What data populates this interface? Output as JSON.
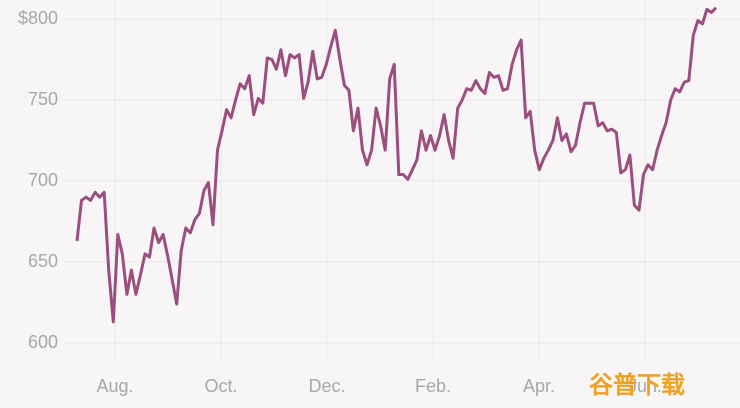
{
  "chart_data": {
    "type": "line",
    "series": [
      {
        "color": "#9b4f7e",
        "values": [
          663,
          688,
          690,
          688,
          693,
          690,
          693,
          645,
          613,
          667,
          655,
          630,
          645,
          630,
          642,
          655,
          653,
          671,
          662,
          667,
          654,
          639,
          624,
          657,
          671,
          668,
          676,
          680,
          694,
          699,
          673,
          719,
          731,
          744,
          739,
          750,
          760,
          757,
          765,
          741,
          751,
          748,
          776,
          775,
          769,
          781,
          765,
          778,
          776,
          778,
          751,
          761,
          780,
          763,
          764,
          772,
          783,
          793,
          775,
          759,
          756,
          731,
          745,
          719,
          710,
          719,
          745,
          734,
          719,
          763,
          772,
          704,
          704,
          701,
          707,
          713,
          731,
          719,
          728,
          719,
          728,
          741,
          725,
          714,
          745,
          750,
          757,
          756,
          762,
          757,
          754,
          767,
          764,
          765,
          756,
          757,
          772,
          781,
          787,
          739,
          743,
          719,
          707,
          714,
          719,
          725,
          739,
          725,
          729,
          718,
          722,
          736,
          748,
          748,
          748,
          734,
          736,
          731,
          732,
          730,
          705,
          707,
          716,
          685,
          682,
          704,
          710,
          707,
          719,
          728,
          736,
          750,
          757,
          755,
          761,
          762,
          790,
          799,
          797,
          806,
          804,
          807
        ]
      }
    ],
    "xtick_labels": [
      "Aug.",
      "Oct.",
      "Dec.",
      "Feb.",
      "Apr.",
      "Jun."
    ],
    "ylim": [
      590,
      810
    ],
    "yticks": [
      600,
      650,
      700,
      750,
      {
        "value": 800,
        "label": "$800"
      }
    ],
    "grid": true,
    "watermark": "谷普下载"
  }
}
